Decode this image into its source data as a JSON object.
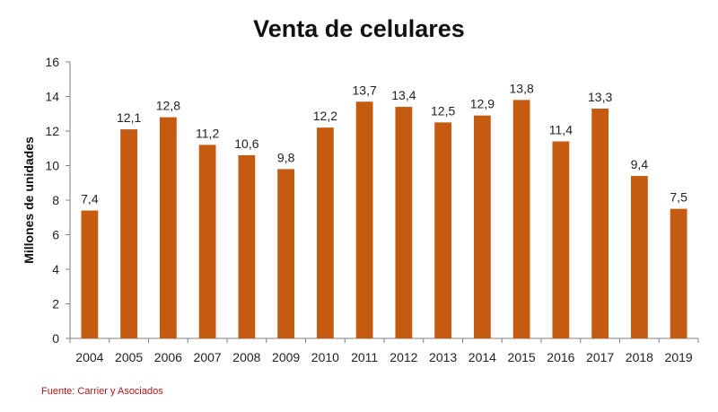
{
  "chart_data": {
    "type": "bar",
    "title": "Venta de celulares",
    "xlabel": "",
    "ylabel": "Millones de unidades",
    "categories": [
      "2004",
      "2005",
      "2006",
      "2007",
      "2008",
      "2009",
      "2010",
      "2011",
      "2012",
      "2013",
      "2014",
      "2015",
      "2016",
      "2017",
      "2018",
      "2019"
    ],
    "values": [
      7.4,
      12.1,
      12.8,
      11.2,
      10.6,
      9.8,
      12.2,
      13.7,
      13.4,
      12.5,
      12.9,
      13.8,
      11.4,
      13.3,
      9.4,
      7.5
    ],
    "data_labels": [
      "7,4",
      "12,1",
      "12,8",
      "11,2",
      "10,6",
      "9,8",
      "12,2",
      "13,7",
      "13,4",
      "12,5",
      "12,9",
      "13,8",
      "11,4",
      "13,3",
      "9,4",
      "7,5"
    ],
    "ylim": [
      0,
      16
    ],
    "yticks": [
      0,
      2,
      4,
      6,
      8,
      10,
      12,
      14,
      16
    ],
    "grid": false,
    "bar_color": "#c55a11"
  },
  "source_note": "Fuente: Carrier y Asociados"
}
